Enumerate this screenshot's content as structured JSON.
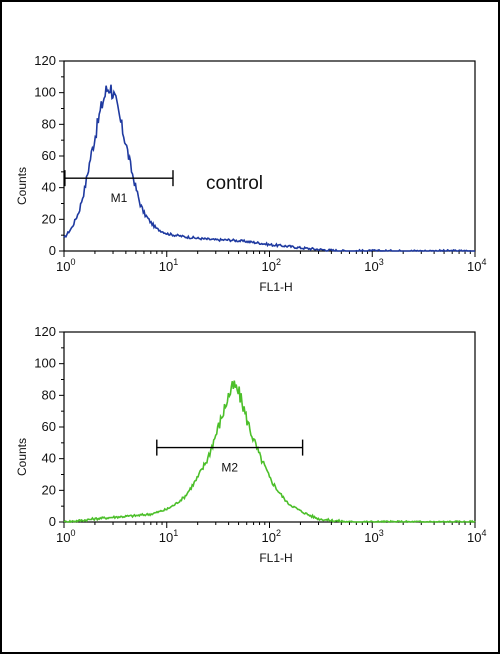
{
  "chart_data": [
    {
      "type": "line",
      "xlabel": "FL1-H",
      "ylabel": "Counts",
      "xscale": "log",
      "xlim": [
        1,
        10000
      ],
      "ylim": [
        0,
        120
      ],
      "xticks": [
        {
          "base": "10",
          "exp": "0"
        },
        {
          "base": "10",
          "exp": "1"
        },
        {
          "base": "10",
          "exp": "2"
        },
        {
          "base": "10",
          "exp": "3"
        },
        {
          "base": "10",
          "exp": "4"
        }
      ],
      "yticks": [
        "0",
        "20",
        "40",
        "60",
        "80",
        "100",
        "120"
      ],
      "grid": false,
      "annotation": "control",
      "series": [
        {
          "color": "#1f3aa0",
          "x": [
            1.0,
            1.2,
            1.4,
            1.6,
            1.8,
            2.0,
            2.2,
            2.4,
            2.6,
            2.8,
            3.0,
            3.3,
            3.6,
            4.0,
            4.5,
            5.0,
            5.5,
            6.0,
            7.0,
            8.0,
            10,
            12,
            15,
            20,
            30,
            40,
            60,
            80,
            100,
            150,
            200,
            300,
            500,
            1000,
            3000,
            10000
          ],
          "y": [
            8,
            15,
            25,
            40,
            58,
            72,
            85,
            95,
            102,
            104,
            100,
            90,
            80,
            68,
            52,
            40,
            30,
            24,
            18,
            14,
            11,
            10,
            9,
            8,
            7,
            7,
            6,
            5,
            4,
            3,
            2,
            1,
            0,
            0,
            0,
            0
          ]
        }
      ],
      "markers": [
        {
          "label": "M1",
          "x_start": 1.02,
          "x_end": 11.5,
          "y": 46
        }
      ]
    },
    {
      "type": "line",
      "xlabel": "FL1-H",
      "ylabel": "Counts",
      "xscale": "log",
      "xlim": [
        1,
        10000
      ],
      "ylim": [
        0,
        120
      ],
      "xticks": [
        {
          "base": "10",
          "exp": "0"
        },
        {
          "base": "10",
          "exp": "1"
        },
        {
          "base": "10",
          "exp": "2"
        },
        {
          "base": "10",
          "exp": "3"
        },
        {
          "base": "10",
          "exp": "4"
        }
      ],
      "yticks": [
        "0",
        "20",
        "40",
        "60",
        "80",
        "100",
        "120"
      ],
      "grid": false,
      "series": [
        {
          "color": "#4cbf2a",
          "x": [
            1.0,
            1.5,
            2.0,
            3.0,
            5.0,
            7.0,
            8.0,
            10,
            12,
            15,
            20,
            25,
            30,
            35,
            40,
            45,
            50,
            55,
            60,
            70,
            80,
            90,
            100,
            120,
            150,
            200,
            250,
            300,
            400,
            600,
            1000,
            3000,
            10000
          ],
          "y": [
            0,
            1,
            2,
            3,
            4,
            5,
            6,
            8,
            11,
            16,
            28,
            40,
            55,
            68,
            80,
            86,
            82,
            74,
            65,
            52,
            42,
            35,
            28,
            20,
            12,
            7,
            4,
            2,
            1,
            0,
            0,
            0,
            0
          ]
        }
      ],
      "markers": [
        {
          "label": "M2",
          "x_start": 8.0,
          "x_end": 210,
          "y": 47
        }
      ]
    }
  ]
}
